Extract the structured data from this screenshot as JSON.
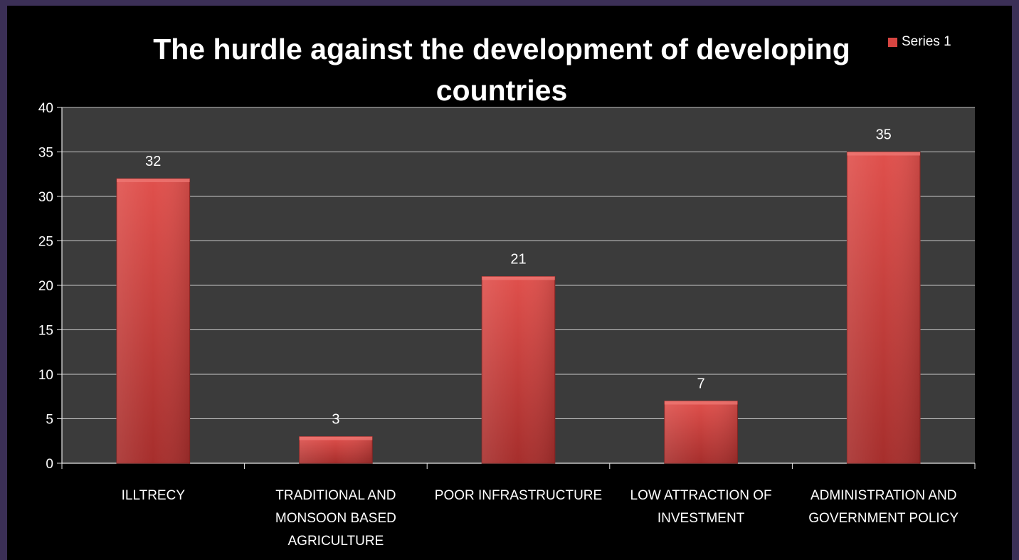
{
  "colors": {
    "slide_border": "#3b2f56",
    "plot_background": "#3b3b3b",
    "gridline": "#c9c9c9",
    "axis": "#e8e8e8",
    "bar_top": "#e0504c",
    "bar_bottom": "#a62e2c",
    "legend_swatch": "#d64541"
  },
  "legend": {
    "placement": "top-right",
    "entries": [
      "Series 1"
    ]
  },
  "chart_data": {
    "type": "bar",
    "title": "The hurdle against the development of developing countries",
    "xlabel": "",
    "ylabel": "",
    "ylim": [
      0,
      40
    ],
    "yticks": [
      0,
      5,
      10,
      15,
      20,
      25,
      30,
      35,
      40
    ],
    "grid": true,
    "categories": [
      "ILLTRECY",
      "TRADITIONAL AND MONSOON BASED AGRICULTURE",
      "POOR INFRASTRUCTURE",
      "LOW ATTRACTION OF INVESTMENT",
      "ADMINISTRATION AND GOVERNMENT POLICY"
    ],
    "series": [
      {
        "name": "Series 1",
        "values": [
          32,
          3,
          21,
          7,
          35
        ]
      }
    ],
    "data_labels": [
      "32",
      "3",
      "21",
      "7",
      "35"
    ]
  }
}
